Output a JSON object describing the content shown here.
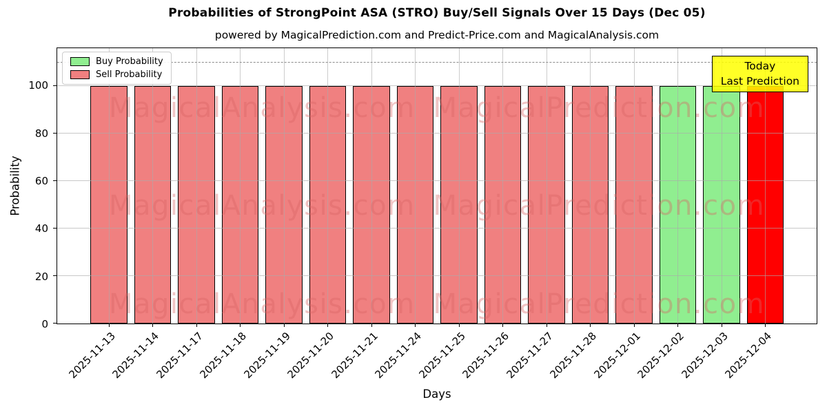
{
  "title": "Probabilities of StrongPoint ASA (STRO) Buy/Sell Signals Over 15 Days (Dec 05)",
  "subtitle": "powered by MagicalPrediction.com and Predict-Price.com and MagicalAnalysis.com",
  "axes": {
    "xlabel": "Days",
    "ylabel": "Probability",
    "yticks": [
      0,
      20,
      40,
      60,
      80,
      100
    ],
    "ymax": 116,
    "dashed_line_y": 110
  },
  "legend": {
    "items": [
      {
        "label": "Buy Probability",
        "color": "#90ee90"
      },
      {
        "label": "Sell Probability",
        "color": "#f08080"
      }
    ]
  },
  "annotation": {
    "line1": "Today",
    "line2": "Last Prediction",
    "bg_color": "#ffff00"
  },
  "watermarks": {
    "left_text": "MagicalAnalysis.com",
    "right_text": "MagicalPrediction.com",
    "rows": 3
  },
  "colors": {
    "sell": "#f08080",
    "buy": "#90ee90",
    "today": "#ff0000",
    "bar_edge": "#000000"
  },
  "chart_data": {
    "type": "bar",
    "title": "Probabilities of StrongPoint ASA (STRO) Buy/Sell Signals Over 15 Days (Dec 05)",
    "xlabel": "Days",
    "ylabel": "Probability",
    "ylim": [
      0,
      116
    ],
    "grid": true,
    "legend_position": "upper left",
    "categories": [
      "2025-11-13",
      "2025-11-14",
      "2025-11-17",
      "2025-11-18",
      "2025-11-19",
      "2025-11-20",
      "2025-11-21",
      "2025-11-24",
      "2025-11-25",
      "2025-11-26",
      "2025-11-27",
      "2025-11-28",
      "2025-12-01",
      "2025-12-02",
      "2025-12-03",
      "2025-12-04"
    ],
    "values": [
      100,
      100,
      100,
      100,
      100,
      100,
      100,
      100,
      100,
      100,
      100,
      100,
      100,
      100,
      100,
      100
    ],
    "series": [
      {
        "name": "Buy Probability",
        "values": [
          0,
          0,
          0,
          0,
          0,
          0,
          0,
          0,
          0,
          0,
          0,
          0,
          0,
          100,
          100,
          0
        ]
      },
      {
        "name": "Sell Probability",
        "values": [
          100,
          100,
          100,
          100,
          100,
          100,
          100,
          100,
          100,
          100,
          100,
          100,
          100,
          0,
          0,
          100
        ]
      }
    ],
    "bar_colors": [
      "#f08080",
      "#f08080",
      "#f08080",
      "#f08080",
      "#f08080",
      "#f08080",
      "#f08080",
      "#f08080",
      "#f08080",
      "#f08080",
      "#f08080",
      "#f08080",
      "#f08080",
      "#90ee90",
      "#90ee90",
      "#ff0000"
    ],
    "dashed_reference_line": 110
  }
}
